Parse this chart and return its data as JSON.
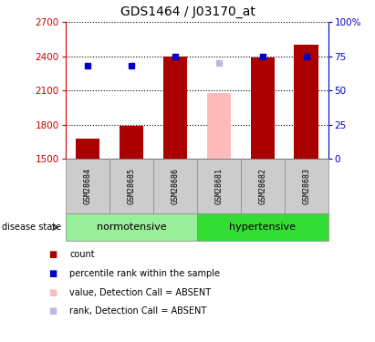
{
  "title": "GDS1464 / J03170_at",
  "samples": [
    "GSM28684",
    "GSM28685",
    "GSM28686",
    "GSM28681",
    "GSM28682",
    "GSM28683"
  ],
  "bar_values": [
    1680,
    1790,
    2400,
    2080,
    2390,
    2500
  ],
  "bar_absent": [
    false,
    false,
    false,
    true,
    false,
    false
  ],
  "rank_values": [
    68,
    68,
    75,
    70,
    75,
    75
  ],
  "rank_absent": [
    false,
    false,
    false,
    true,
    false,
    false
  ],
  "ylim_left": [
    1500,
    2700
  ],
  "ylim_right": [
    0,
    100
  ],
  "yticks_left": [
    1500,
    1800,
    2100,
    2400,
    2700
  ],
  "yticks_right": [
    0,
    25,
    50,
    75,
    100
  ],
  "ytick_labels_right": [
    "0",
    "25",
    "50",
    "75",
    "100%"
  ],
  "bar_color": "#aa0000",
  "bar_absent_color": "#ffbbbb",
  "rank_color": "#0000cc",
  "rank_absent_color": "#bbbbdd",
  "normotensive_color": "#99ee99",
  "hypertensive_color": "#33dd33",
  "sample_bg_color": "#cccccc",
  "left_axis_color": "#cc0000",
  "right_axis_color": "#0000cc",
  "title_fontsize": 10,
  "tick_fontsize": 7.5,
  "sample_fontsize": 6,
  "legend_fontsize": 7,
  "group_fontsize": 8
}
